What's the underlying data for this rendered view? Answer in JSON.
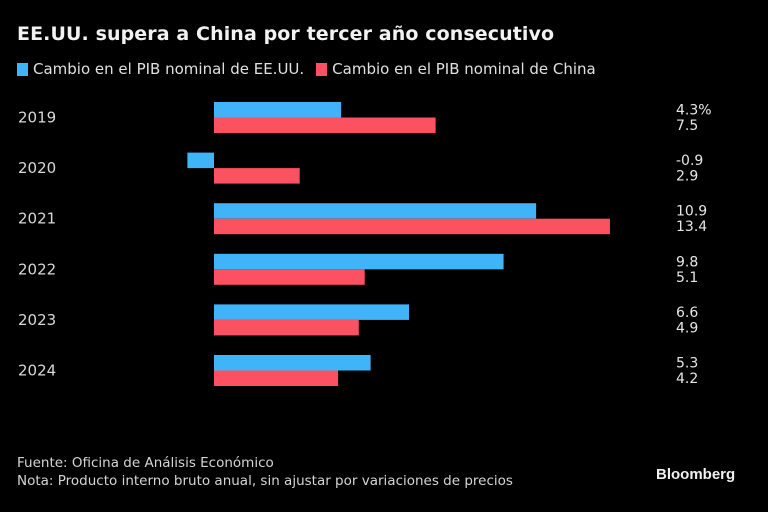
{
  "chart_data": {
    "type": "bar",
    "orientation": "horizontal",
    "title": "EE.UU. supera a China por tercer año consecutivo",
    "categories": [
      "2019",
      "2020",
      "2021",
      "2022",
      "2023",
      "2024"
    ],
    "series": [
      {
        "name": "Cambio en el PIB nominal de EE.UU.",
        "color": "#40b4f8",
        "values": [
          4.3,
          -0.9,
          10.9,
          9.8,
          6.6,
          5.3
        ]
      },
      {
        "name": "Cambio en el PIB nominal de China",
        "color": "#fb5160",
        "values": [
          7.5,
          2.9,
          13.4,
          5.1,
          4.9,
          4.2
        ]
      }
    ],
    "value_labels": [
      [
        "4.3%",
        "7.5"
      ],
      [
        "-0.9",
        "2.9"
      ],
      [
        "10.9",
        "13.4"
      ],
      [
        "9.8",
        "5.1"
      ],
      [
        "6.6",
        "4.9"
      ],
      [
        "5.3",
        "4.2"
      ]
    ],
    "xlim": [
      -1,
      13.4
    ],
    "unit": "%",
    "grid": false,
    "legend_position": "top-left",
    "xlabel": "",
    "ylabel": ""
  },
  "footer": {
    "source": "Fuente: Oficina de Análisis Económico",
    "note": "Nota: Producto interno bruto anual, sin ajustar por variaciones de precios",
    "brand": "Bloomberg"
  }
}
